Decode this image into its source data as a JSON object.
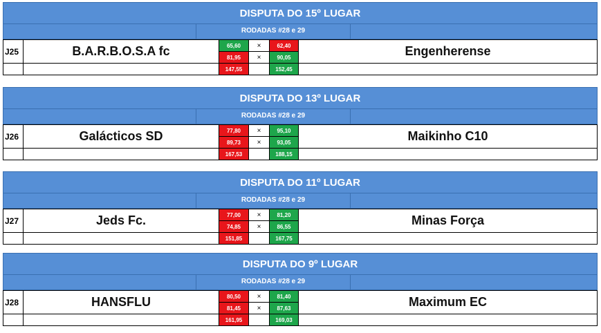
{
  "matches": [
    {
      "title": "DISPUTA DO 15º LUGAR",
      "rounds": "RODADAS #28 e 29",
      "code": "J25",
      "home": "B.A.R.B.O.S.A fc",
      "away": "Engenherense",
      "r1_home": "65,60",
      "r1_away": "62,40",
      "r2_home": "81,95",
      "r2_away": "90,05",
      "total_home": "147,55",
      "total_away": "152,45",
      "vs": "×",
      "r1_home_color": "#1ea64b",
      "r1_away_color": "#e8161b",
      "r2_home_color": "#e8161b",
      "r2_away_color": "#1ea64b",
      "total_home_color": "#e8161b",
      "total_away_color": "#1ea64b"
    },
    {
      "title": "DISPUTA DO 13º LUGAR",
      "rounds": "RODADAS #28 e 29",
      "code": "J26",
      "home": "Galácticos SD",
      "away": "Maikinho C10",
      "r1_home": "77,80",
      "r1_away": "95,10",
      "r2_home": "89,73",
      "r2_away": "93,05",
      "total_home": "167,53",
      "total_away": "188,15",
      "vs": "×",
      "r1_home_color": "#e8161b",
      "r1_away_color": "#1ea64b",
      "r2_home_color": "#e8161b",
      "r2_away_color": "#1ea64b",
      "total_home_color": "#e8161b",
      "total_away_color": "#1ea64b"
    },
    {
      "title": "DISPUTA DO 11º LUGAR",
      "rounds": "RODADAS #28 e 29",
      "code": "J27",
      "home": "Jeds Fc.",
      "away": "Minas Força",
      "r1_home": "77,00",
      "r1_away": "81,20",
      "r2_home": "74,85",
      "r2_away": "86,55",
      "total_home": "151,85",
      "total_away": "167,75",
      "vs": "×",
      "r1_home_color": "#e8161b",
      "r1_away_color": "#1ea64b",
      "r2_home_color": "#e8161b",
      "r2_away_color": "#1ea64b",
      "total_home_color": "#e8161b",
      "total_away_color": "#1ea64b"
    },
    {
      "title": "DISPUTA DO 9º LUGAR",
      "rounds": "RODADAS #28 e 29",
      "code": "J28",
      "home": "HANSFLU",
      "away": "Maximum EC",
      "r1_home": "80,50",
      "r1_away": "81,40",
      "r2_home": "81,45",
      "r2_away": "87,63",
      "total_home": "161,95",
      "total_away": "169,03",
      "vs": "×",
      "r1_home_color": "#e8161b",
      "r1_away_color": "#1ea64b",
      "r2_home_color": "#e8161b",
      "r2_away_color": "#1ea64b",
      "total_home_color": "#e8161b",
      "total_away_color": "#1ea64b"
    }
  ]
}
